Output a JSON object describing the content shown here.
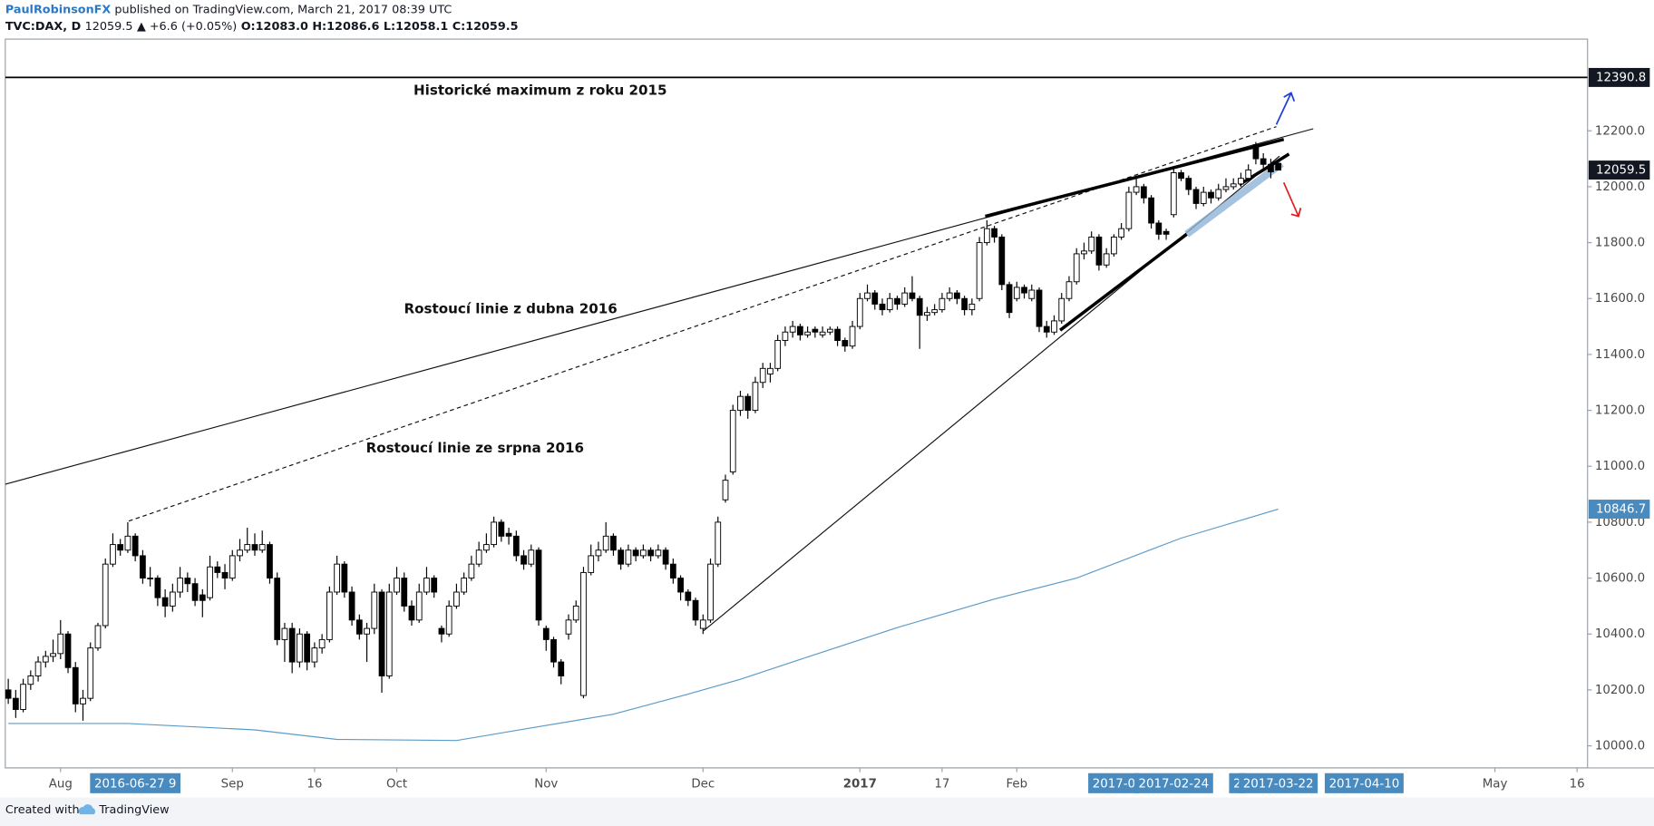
{
  "header": {
    "author": "PaulRobinsonFX",
    "published": "published on TradingView.com, March 21, 2017 08:39 UTC",
    "symbol": "TVC:DAX, D",
    "price": "12059.5",
    "change": "▲ +6.6 (+0.05%)",
    "open": "O:12083.0",
    "high": "H:12086.6",
    "low": "L:12058.1",
    "close": "C:12059.5"
  },
  "footer": {
    "created": "Created with",
    "brand": "TradingView"
  },
  "chart_data": {
    "type": "candlestick",
    "xlim": [
      -0.4,
      211.4
    ],
    "ylim": [
      9921,
      12528
    ],
    "grid": false,
    "up_color": "#ffffff",
    "down_color": "#000000",
    "wick_color": "#000000",
    "yticks": [
      {
        "value": 12200,
        "label": "12200.0"
      },
      {
        "value": 12000,
        "label": "12000.0"
      },
      {
        "value": 11800,
        "label": "11800.0"
      },
      {
        "value": 11600,
        "label": "11600.0"
      },
      {
        "value": 11400,
        "label": "11400.0"
      },
      {
        "value": 11200,
        "label": "11200.0"
      },
      {
        "value": 11000,
        "label": "11000.0"
      },
      {
        "value": 10800,
        "label": "10800.0"
      },
      {
        "value": 10600,
        "label": "10600.0"
      },
      {
        "value": 10400,
        "label": "10400.0"
      },
      {
        "value": 10200,
        "label": "10200.0"
      },
      {
        "value": 10000,
        "label": "10000.0"
      }
    ],
    "xticks": [
      {
        "value": 7,
        "label": "Aug"
      },
      {
        "value": 30,
        "label": "Sep"
      },
      {
        "value": 41,
        "label": "16"
      },
      {
        "value": 52,
        "label": "Oct"
      },
      {
        "value": 72,
        "label": "Nov"
      },
      {
        "value": 93,
        "label": "Dec"
      },
      {
        "value": 114,
        "label": "2017",
        "bold": true
      },
      {
        "value": 125,
        "label": "17"
      },
      {
        "value": 135,
        "label": "Feb"
      },
      {
        "value": 199,
        "label": "May"
      },
      {
        "value": 210,
        "label": "16"
      }
    ],
    "x_markers": [
      {
        "value": 17,
        "label": "2016-06-27 9"
      },
      {
        "value": 148,
        "label": "2017-0"
      },
      {
        "value": 156,
        "label": "2017-02-24"
      },
      {
        "value": 164.5,
        "label": "2"
      },
      {
        "value": 170,
        "label": "2017-03-22"
      },
      {
        "value": 181.5,
        "label": "2017-04-10"
      }
    ],
    "x_marker_color": "#4a8bbf",
    "price_labels": [
      {
        "value": 12390.8,
        "color": "#131722",
        "line": true
      },
      {
        "value": 12059.5,
        "color": "#131722"
      },
      {
        "value": 10846.7,
        "color": "#4a8bbf"
      }
    ],
    "annotations": [
      "Historické maximum z roku 2015",
      "Rostoucí linie z dubna 2016",
      "Rostoucí linie ze srpna 2016"
    ],
    "ma": {
      "color": "#5b9bc8",
      "x": [
        0,
        16,
        33,
        44,
        60,
        70,
        81,
        91,
        98,
        106,
        119,
        132,
        143,
        157,
        170
      ],
      "values": [
        10080,
        10080,
        10057,
        10023,
        10019,
        10064,
        10113,
        10185,
        10238,
        10309,
        10423,
        10525,
        10600,
        10743,
        10846.7
      ]
    },
    "candles": [
      [
        10200,
        10240,
        10150,
        10170
      ],
      [
        10170,
        10200,
        10100,
        10130
      ],
      [
        10130,
        10240,
        10120,
        10220
      ],
      [
        10220,
        10270,
        10200,
        10250
      ],
      [
        10250,
        10320,
        10230,
        10300
      ],
      [
        10300,
        10340,
        10280,
        10320
      ],
      [
        10320,
        10380,
        10300,
        10330
      ],
      [
        10330,
        10450,
        10310,
        10400
      ],
      [
        10400,
        10410,
        10260,
        10280
      ],
      [
        10280,
        10300,
        10120,
        10150
      ],
      [
        10150,
        10200,
        10090,
        10170
      ],
      [
        10170,
        10370,
        10160,
        10350
      ],
      [
        10350,
        10440,
        10340,
        10430
      ],
      [
        10430,
        10670,
        10420,
        10650
      ],
      [
        10650,
        10760,
        10640,
        10720
      ],
      [
        10720,
        10740,
        10680,
        10700
      ],
      [
        10700,
        10800,
        10690,
        10750
      ],
      [
        10750,
        10760,
        10660,
        10680
      ],
      [
        10680,
        10700,
        10580,
        10600
      ],
      [
        10600,
        10640,
        10570,
        10600
      ],
      [
        10600,
        10610,
        10500,
        10530
      ],
      [
        10530,
        10560,
        10460,
        10500
      ],
      [
        10500,
        10580,
        10480,
        10550
      ],
      [
        10550,
        10640,
        10530,
        10600
      ],
      [
        10600,
        10620,
        10550,
        10580
      ],
      [
        10580,
        10600,
        10500,
        10520
      ],
      [
        10540,
        10560,
        10460,
        10520
      ],
      [
        10530,
        10680,
        10520,
        10640
      ],
      [
        10640,
        10660,
        10600,
        10620
      ],
      [
        10620,
        10650,
        10560,
        10600
      ],
      [
        10600,
        10700,
        10590,
        10680
      ],
      [
        10680,
        10740,
        10660,
        10700
      ],
      [
        10700,
        10780,
        10690,
        10720
      ],
      [
        10720,
        10760,
        10680,
        10700
      ],
      [
        10700,
        10770,
        10690,
        10720
      ],
      [
        10720,
        10730,
        10580,
        10600
      ],
      [
        10600,
        10620,
        10360,
        10380
      ],
      [
        10380,
        10440,
        10300,
        10420
      ],
      [
        10420,
        10440,
        10260,
        10300
      ],
      [
        10300,
        10420,
        10280,
        10400
      ],
      [
        10400,
        10410,
        10270,
        10300
      ],
      [
        10300,
        10370,
        10280,
        10350
      ],
      [
        10350,
        10400,
        10330,
        10380
      ],
      [
        10380,
        10570,
        10370,
        10550
      ],
      [
        10550,
        10680,
        10540,
        10650
      ],
      [
        10650,
        10660,
        10530,
        10550
      ],
      [
        10550,
        10570,
        10430,
        10450
      ],
      [
        10450,
        10470,
        10380,
        10400
      ],
      [
        10400,
        10440,
        10300,
        10420
      ],
      [
        10420,
        10580,
        10400,
        10550
      ],
      [
        10550,
        10560,
        10190,
        10250
      ],
      [
        10250,
        10580,
        10240,
        10550
      ],
      [
        10550,
        10640,
        10540,
        10600
      ],
      [
        10600,
        10620,
        10480,
        10500
      ],
      [
        10500,
        10520,
        10430,
        10450
      ],
      [
        10450,
        10580,
        10440,
        10550
      ],
      [
        10550,
        10640,
        10540,
        10600
      ],
      [
        10600,
        10610,
        10530,
        10550
      ],
      [
        10420,
        10430,
        10370,
        10400
      ],
      [
        10400,
        10520,
        10390,
        10500
      ],
      [
        10500,
        10580,
        10490,
        10550
      ],
      [
        10550,
        10620,
        10540,
        10600
      ],
      [
        10600,
        10680,
        10590,
        10650
      ],
      [
        10650,
        10730,
        10640,
        10700
      ],
      [
        10700,
        10760,
        10690,
        10720
      ],
      [
        10720,
        10820,
        10710,
        10800
      ],
      [
        10800,
        10810,
        10730,
        10750
      ],
      [
        10760,
        10780,
        10720,
        10750
      ],
      [
        10750,
        10770,
        10660,
        10680
      ],
      [
        10680,
        10700,
        10630,
        10650
      ],
      [
        10650,
        10720,
        10640,
        10700
      ],
      [
        10700,
        10710,
        10430,
        10450
      ],
      [
        10420,
        10430,
        10340,
        10380
      ],
      [
        10380,
        10390,
        10280,
        10300
      ],
      [
        10300,
        10310,
        10220,
        10250
      ],
      [
        10400,
        10470,
        10380,
        10450
      ],
      [
        10450,
        10520,
        10440,
        10500
      ],
      [
        10180,
        10640,
        10170,
        10620
      ],
      [
        10620,
        10720,
        10610,
        10680
      ],
      [
        10680,
        10730,
        10660,
        10700
      ],
      [
        10700,
        10800,
        10690,
        10750
      ],
      [
        10750,
        10760,
        10680,
        10700
      ],
      [
        10700,
        10710,
        10630,
        10650
      ],
      [
        10650,
        10720,
        10640,
        10700
      ],
      [
        10700,
        10710,
        10660,
        10680
      ],
      [
        10680,
        10720,
        10670,
        10700
      ],
      [
        10700,
        10710,
        10660,
        10680
      ],
      [
        10680,
        10720,
        10670,
        10700
      ],
      [
        10700,
        10710,
        10630,
        10650
      ],
      [
        10650,
        10670,
        10580,
        10600
      ],
      [
        10600,
        10610,
        10520,
        10550
      ],
      [
        10550,
        10560,
        10500,
        10520
      ],
      [
        10520,
        10530,
        10430,
        10450
      ],
      [
        10420,
        10470,
        10400,
        10450
      ],
      [
        10450,
        10670,
        10440,
        10650
      ],
      [
        10650,
        10820,
        10640,
        10800
      ],
      [
        10880,
        10970,
        10870,
        10950
      ],
      [
        10980,
        11220,
        10970,
        11200
      ],
      [
        11200,
        11270,
        11180,
        11250
      ],
      [
        11250,
        11260,
        11170,
        11200
      ],
      [
        11200,
        11320,
        11190,
        11300
      ],
      [
        11300,
        11370,
        11280,
        11350
      ],
      [
        11330,
        11370,
        11300,
        11350
      ],
      [
        11350,
        11470,
        11340,
        11450
      ],
      [
        11450,
        11500,
        11430,
        11480
      ],
      [
        11480,
        11520,
        11460,
        11500
      ],
      [
        11500,
        11510,
        11450,
        11470
      ],
      [
        11470,
        11500,
        11460,
        11480
      ],
      [
        11490,
        11500,
        11460,
        11480
      ],
      [
        11470,
        11500,
        11460,
        11480
      ],
      [
        11480,
        11500,
        11470,
        11490
      ],
      [
        11490,
        11500,
        11430,
        11450
      ],
      [
        11450,
        11460,
        11410,
        11430
      ],
      [
        11430,
        11520,
        11420,
        11500
      ],
      [
        11500,
        11620,
        11490,
        11600
      ],
      [
        11600,
        11650,
        11590,
        11620
      ],
      [
        11620,
        11630,
        11560,
        11580
      ],
      [
        11580,
        11600,
        11540,
        11560
      ],
      [
        11560,
        11620,
        11550,
        11600
      ],
      [
        11600,
        11610,
        11560,
        11580
      ],
      [
        11580,
        11640,
        11570,
        11620
      ],
      [
        11620,
        11680,
        11590,
        11600
      ],
      [
        11600,
        11610,
        11420,
        11540
      ],
      [
        11540,
        11570,
        11520,
        11550
      ],
      [
        11550,
        11580,
        11540,
        11560
      ],
      [
        11560,
        11620,
        11550,
        11600
      ],
      [
        11600,
        11640,
        11590,
        11620
      ],
      [
        11620,
        11630,
        11580,
        11600
      ],
      [
        11600,
        11610,
        11540,
        11560
      ],
      [
        11560,
        11600,
        11540,
        11580
      ],
      [
        11600,
        11820,
        11590,
        11800
      ],
      [
        11800,
        11880,
        11790,
        11850
      ],
      [
        11850,
        11860,
        11800,
        11820
      ],
      [
        11820,
        11830,
        11630,
        11650
      ],
      [
        11650,
        11660,
        11530,
        11550
      ],
      [
        11600,
        11660,
        11590,
        11640
      ],
      [
        11640,
        11650,
        11600,
        11620
      ],
      [
        11600,
        11650,
        11590,
        11630
      ],
      [
        11630,
        11640,
        11480,
        11500
      ],
      [
        11500,
        11520,
        11460,
        11480
      ],
      [
        11480,
        11540,
        11470,
        11520
      ],
      [
        11520,
        11620,
        11510,
        11600
      ],
      [
        11600,
        11680,
        11590,
        11660
      ],
      [
        11660,
        11780,
        11650,
        11760
      ],
      [
        11760,
        11800,
        11740,
        11770
      ],
      [
        11770,
        11840,
        11760,
        11820
      ],
      [
        11820,
        11830,
        11700,
        11720
      ],
      [
        11720,
        11780,
        11710,
        11760
      ],
      [
        11760,
        11830,
        11750,
        11820
      ],
      [
        11820,
        11870,
        11810,
        11850
      ],
      [
        11850,
        12000,
        11840,
        11980
      ],
      [
        11980,
        12030,
        11970,
        12000
      ],
      [
        12000,
        12010,
        11940,
        11960
      ],
      [
        11960,
        11970,
        11850,
        11870
      ],
      [
        11870,
        11880,
        11810,
        11830
      ],
      [
        11840,
        11850,
        11810,
        11830
      ],
      [
        11900,
        12070,
        11890,
        12050
      ],
      [
        12050,
        12060,
        12020,
        12030
      ],
      [
        12030,
        12040,
        11970,
        11990
      ],
      [
        11990,
        12000,
        11920,
        11940
      ],
      [
        11940,
        12000,
        11930,
        11980
      ],
      [
        11980,
        11990,
        11940,
        11960
      ],
      [
        11960,
        12010,
        11950,
        11990
      ],
      [
        11990,
        12030,
        11980,
        12000
      ],
      [
        12000,
        12030,
        11990,
        12010
      ],
      [
        12010,
        12050,
        12000,
        12030
      ],
      [
        12030,
        12080,
        12020,
        12060
      ],
      [
        12150,
        12160,
        12080,
        12100
      ],
      [
        12100,
        12120,
        12060,
        12080
      ],
      [
        12080,
        12100,
        12030,
        12053
      ],
      [
        12083,
        12086.6,
        12058.1,
        12059.5
      ]
    ]
  }
}
